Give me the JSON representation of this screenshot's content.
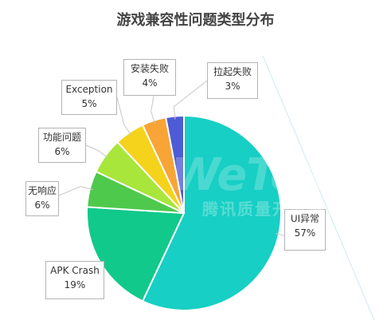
{
  "chart_data": {
    "type": "pie",
    "title": "游戏兼容性问题类型分布",
    "slices": [
      {
        "label": "UI异常",
        "pct_label": "57%",
        "value": 57,
        "color": "#17cfc4"
      },
      {
        "label": "APK Crash",
        "pct_label": "19%",
        "value": 19,
        "color": "#11c98a"
      },
      {
        "label": "无响应",
        "pct_label": "6%",
        "value": 6,
        "color": "#4ec94c"
      },
      {
        "label": "功能问题",
        "pct_label": "6%",
        "value": 6,
        "color": "#a8e63b"
      },
      {
        "label": "Exception",
        "pct_label": "5%",
        "value": 5,
        "color": "#f5d21c"
      },
      {
        "label": "安装失败",
        "pct_label": "4%",
        "value": 4,
        "color": "#f8a436"
      },
      {
        "label": "拉起失败",
        "pct_label": "3%",
        "value": 3,
        "color": "#4e5bd6"
      }
    ]
  },
  "watermark": {
    "logo": "WeTest",
    "subtitle": "腾讯质量开放平台"
  }
}
